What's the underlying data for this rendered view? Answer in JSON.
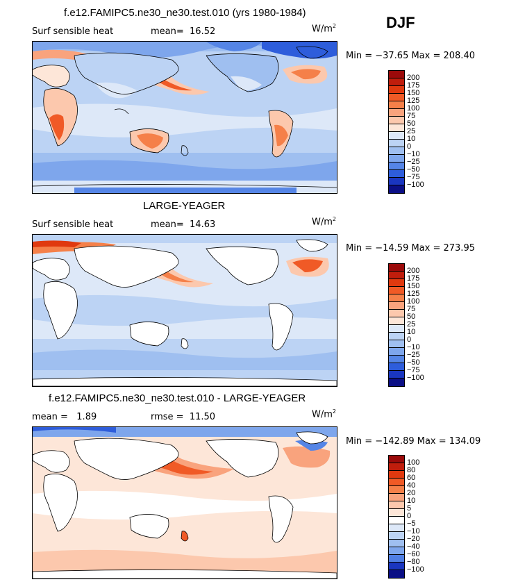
{
  "season": "DJF",
  "chart_data": [
    {
      "type": "heatmap",
      "title": "f.e12.FAMIPC5.ne30_ne30.test.010 (yrs 1980-1984)",
      "left_label": "Surf sensible heat",
      "stat_text": "mean=  16.52",
      "units": "W/m",
      "units_exp": "2",
      "minmax_text": "Min = −37.65  Max = 208.40",
      "min": -37.65,
      "max": 208.4,
      "mean": 16.52,
      "levels": [
        "200",
        "175",
        "150",
        "125",
        "100",
        "75",
        "50",
        "25",
        "10",
        "0",
        "−10",
        "−25",
        "−50",
        "−75",
        "−100"
      ],
      "colors": [
        "#9b0a0a",
        "#c01d0c",
        "#e0390f",
        "#f05a26",
        "#f58049",
        "#f9a37d",
        "#fcc8ad",
        "#fde6d8",
        "#dde8f8",
        "#bcd3f4",
        "#9fbff0",
        "#7ea6ec",
        "#5585e6",
        "#2e5ddb",
        "#1a36c0",
        "#0b0f85"
      ],
      "ocean_level": "0 to 10",
      "land_masked": false
    },
    {
      "type": "heatmap",
      "title": "LARGE-YEAGER",
      "left_label": "Surf sensible heat",
      "stat_text": "mean=  14.63",
      "units": "W/m",
      "units_exp": "2",
      "minmax_text": "Min = −14.59  Max = 273.95",
      "min": -14.59,
      "max": 273.95,
      "mean": 14.63,
      "levels": [
        "200",
        "175",
        "150",
        "125",
        "100",
        "75",
        "50",
        "25",
        "10",
        "0",
        "−10",
        "−25",
        "−50",
        "−75",
        "−100"
      ],
      "colors": [
        "#9b0a0a",
        "#c01d0c",
        "#e0390f",
        "#f05a26",
        "#f58049",
        "#f9a37d",
        "#fcc8ad",
        "#fde6d8",
        "#dde8f8",
        "#bcd3f4",
        "#9fbff0",
        "#7ea6ec",
        "#5585e6",
        "#2e5ddb",
        "#1a36c0",
        "#0b0f85"
      ],
      "ocean_level": "0 to 10",
      "land_masked": true
    },
    {
      "type": "heatmap",
      "title": "f.e12.FAMIPC5.ne30_ne30.test.010 - LARGE-YEAGER",
      "left_label": "mean =   1.89",
      "stat_text": "rmse =  11.50",
      "units": "W/m",
      "units_exp": "2",
      "minmax_text": "Min = −142.89  Max = 134.09",
      "min": -142.89,
      "max": 134.09,
      "mean": 1.89,
      "rmse": 11.5,
      "levels": [
        "100",
        "80",
        "60",
        "40",
        "20",
        "10",
        "5",
        "0",
        "−5",
        "−10",
        "−20",
        "−40",
        "−60",
        "−80",
        "−100"
      ],
      "colors": [
        "#9b0a0a",
        "#c01d0c",
        "#e0390f",
        "#f05a26",
        "#f58049",
        "#f9a37d",
        "#fcc8ad",
        "#fde6d8",
        "#ffffff",
        "#dde8f8",
        "#bcd3f4",
        "#9fbff0",
        "#7ea6ec",
        "#4f7ee3",
        "#1a36c0",
        "#0b0f85"
      ],
      "ocean_level": "0 to 5",
      "land_masked": true
    }
  ]
}
